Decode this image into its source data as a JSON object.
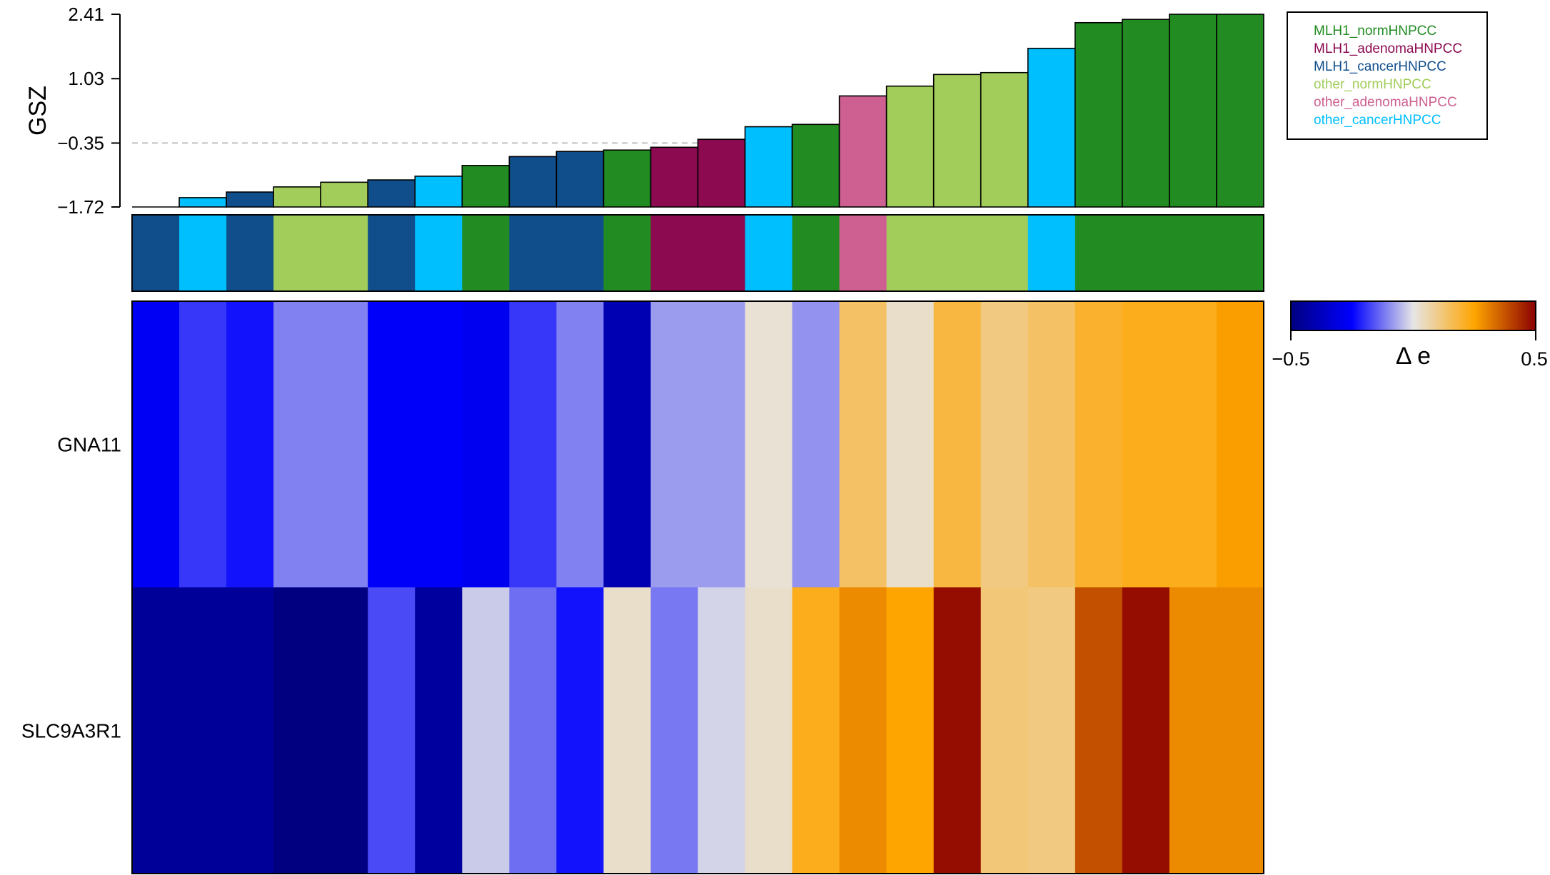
{
  "chart_data": {
    "type": "heatmap",
    "bar_panel": {
      "ylabel": "GSZ",
      "yticks": [
        -1.72,
        -0.35,
        1.03,
        2.41
      ],
      "ytick_labels": [
        "−1.72",
        "−0.35",
        "1.03",
        "2.41"
      ],
      "ylim": [
        -1.72,
        2.41
      ],
      "reference_line": -0.35,
      "values": [
        -1.73,
        -1.52,
        -1.4,
        -1.29,
        -1.19,
        -1.14,
        -1.06,
        -0.83,
        -0.64,
        -0.53,
        -0.5,
        -0.44,
        -0.27,
        0.0,
        0.05,
        0.66,
        0.87,
        1.12,
        1.16,
        1.68,
        2.23,
        2.3,
        2.41,
        2.41
      ]
    },
    "samples_group": [
      2,
      5,
      2,
      3,
      3,
      2,
      5,
      0,
      2,
      2,
      0,
      1,
      1,
      5,
      0,
      4,
      3,
      3,
      3,
      5,
      0,
      0,
      0,
      0
    ],
    "strip_group": [
      2,
      5,
      2,
      3,
      3,
      2,
      5,
      0,
      2,
      2,
      0,
      1,
      1,
      5,
      0,
      4,
      3,
      3,
      3,
      5,
      0,
      0,
      0,
      0
    ],
    "legend": {
      "entries": [
        {
          "label": "MLH1_normHNPCC",
          "color": "#228B22"
        },
        {
          "label": "MLH1_adenomaHNPCC",
          "color": "#8B0A50"
        },
        {
          "label": "MLH1_cancerHNPCC",
          "color": "#104E8B"
        },
        {
          "label": "other_normHNPCC",
          "color": "#A2CD5A"
        },
        {
          "label": "other_adenomaHNPCC",
          "color": "#CD6090"
        },
        {
          "label": "other_cancerHNPCC",
          "color": "#00BFFF"
        }
      ]
    },
    "heatmap": {
      "rows": [
        "GNA11",
        "SLC9A3R1"
      ],
      "values": [
        [
          -0.27,
          -0.19,
          -0.23,
          -0.11,
          -0.11,
          -0.26,
          -0.26,
          -0.28,
          -0.19,
          -0.11,
          -0.4,
          -0.08,
          -0.08,
          0.02,
          -0.09,
          0.14,
          0.03,
          0.18,
          0.11,
          0.14,
          0.2,
          0.22,
          0.22,
          0.26
        ],
        [
          -0.45,
          -0.45,
          -0.45,
          -0.5,
          -0.5,
          -0.17,
          -0.44,
          -0.03,
          -0.13,
          -0.23,
          0.03,
          -0.12,
          -0.02,
          0.03,
          0.22,
          0.29,
          0.25,
          0.48,
          0.12,
          0.11,
          0.38,
          0.48,
          0.29,
          0.29
        ]
      ]
    },
    "colorbar": {
      "min": -0.5,
      "max": 0.5,
      "min_label": "−0.5",
      "max_label": "0.5",
      "label": "Δ e",
      "stops": [
        "#000080",
        "#0000FF",
        "#E6E6E6",
        "#FFA500",
        "#8B0000"
      ]
    }
  }
}
